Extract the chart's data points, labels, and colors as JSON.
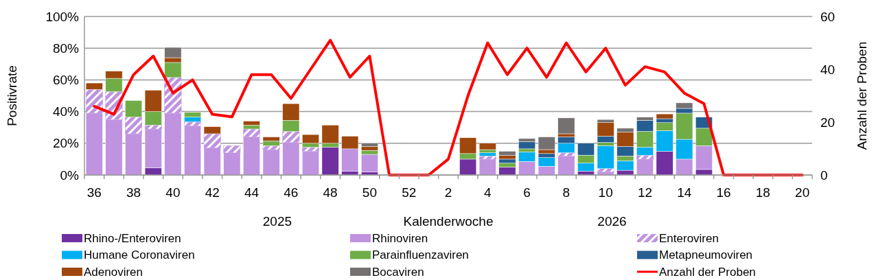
{
  "chart_data": {
    "type": "bar",
    "stacked": true,
    "xlabel": "Kalenderwoche",
    "ylabel": "Positivrate",
    "y2label": "Anzahl der Proben",
    "categories": [
      "36",
      null,
      "38",
      null,
      "40",
      null,
      "42",
      null,
      "44",
      null,
      "46",
      null,
      "48",
      null,
      "50",
      null,
      "52",
      null,
      "2",
      null,
      "4",
      null,
      "6",
      null,
      "8",
      null,
      "10",
      null,
      "12",
      null,
      "14",
      null,
      "16",
      null,
      "18",
      null,
      "20"
    ],
    "series": [
      {
        "name": "Rhino-/Enteroviren",
        "color": "#7030a0",
        "values": [
          null,
          null,
          null,
          4.5,
          null,
          null,
          null,
          null,
          null,
          null,
          null,
          null,
          17.5,
          2.5,
          2,
          null,
          null,
          null,
          null,
          10,
          null,
          5,
          null,
          null,
          null,
          2.5,
          null,
          3,
          null,
          15,
          null,
          3.5,
          null,
          null,
          null,
          null,
          null
        ]
      },
      {
        "name": "Rhinoviren",
        "color": "#bf93e0",
        "values": [
          39,
          35,
          26,
          24.5,
          39,
          31,
          17,
          14,
          24,
          16,
          20.5,
          15,
          null,
          14,
          11,
          null,
          null,
          null,
          null,
          null,
          10,
          null,
          8.5,
          5.5,
          12,
          null,
          2,
          null,
          10,
          null,
          10,
          15,
          null,
          null,
          null,
          null,
          null
        ]
      },
      {
        "name": "Enteroviren",
        "color": "#bf93e0",
        "values": [
          15,
          17.5,
          10.5,
          2.5,
          22.5,
          2.5,
          9,
          4.5,
          5,
          2.5,
          7,
          2.5,
          null,
          null,
          null,
          null,
          null,
          null,
          null,
          null,
          2,
          null,
          null,
          null,
          2,
          null,
          2,
          null,
          2.5,
          null,
          null,
          null,
          null,
          null,
          null,
          null,
          null
        ]
      },
      {
        "name": "Humane Coronaviren",
        "color": "#00b0f0",
        "values": [
          null,
          null,
          null,
          null,
          null,
          3,
          null,
          null,
          null,
          null,
          null,
          null,
          null,
          null,
          null,
          null,
          null,
          null,
          null,
          null,
          2,
          null,
          6,
          5.5,
          6,
          5,
          14.5,
          6,
          5,
          13,
          12.5,
          null,
          null,
          null,
          null,
          null,
          null
        ]
      },
      {
        "name": "Parainfluenzaviren",
        "color": "#70ad47",
        "values": [
          null,
          8.5,
          10.5,
          8.5,
          9.5,
          3,
          null,
          null,
          2.5,
          3,
          7,
          2.5,
          2.5,
          null,
          2.5,
          null,
          null,
          null,
          null,
          3.5,
          2,
          2.5,
          2,
          null,
          null,
          5,
          2,
          3,
          10,
          5,
          16.5,
          11,
          null,
          null,
          null,
          null,
          null
        ]
      },
      {
        "name": "Metapneumoviren",
        "color": "#255e91",
        "values": [
          null,
          null,
          null,
          null,
          null,
          null,
          null,
          null,
          null,
          null,
          null,
          null,
          null,
          null,
          null,
          null,
          null,
          null,
          null,
          null,
          null,
          2.5,
          4.5,
          2.5,
          4,
          7.5,
          4,
          6,
          7,
          2.5,
          3,
          7,
          null,
          null,
          null,
          null,
          null
        ]
      },
      {
        "name": "Adenoviren",
        "color": "#9e480e",
        "values": [
          4,
          4.5,
          null,
          13.5,
          3,
          null,
          4.5,
          null,
          2.5,
          2.5,
          10.5,
          5.5,
          11.5,
          8,
          2.5,
          null,
          null,
          null,
          null,
          10,
          4,
          2.5,
          null,
          2.5,
          2,
          null,
          8.5,
          9,
          null,
          3,
          null,
          null,
          null,
          null,
          null,
          null,
          null
        ]
      },
      {
        "name": "Bocaviren",
        "color": "#767171",
        "values": [
          null,
          null,
          null,
          null,
          6.5,
          null,
          null,
          null,
          null,
          null,
          null,
          null,
          null,
          null,
          2,
          null,
          null,
          null,
          null,
          null,
          null,
          2.5,
          2,
          8,
          10,
          null,
          2,
          2.5,
          2,
          null,
          3.5,
          null,
          null,
          null,
          null,
          null,
          null
        ]
      },
      {
        "name": "Anzahl der Proben",
        "type": "line",
        "axis": "y2",
        "color": "#ff0000",
        "values": [
          26,
          23,
          38,
          45,
          31,
          36,
          23,
          22,
          38,
          38,
          29,
          40,
          51,
          37,
          45,
          0,
          0,
          0,
          6,
          30,
          50,
          38,
          48,
          37,
          50,
          39,
          48,
          34,
          41,
          39,
          31,
          27,
          0,
          0,
          0,
          0,
          0
        ]
      }
    ],
    "ylim": [
      0,
      100
    ],
    "yticks": [
      {
        "value": 0,
        "label": "0%"
      },
      {
        "value": 20,
        "label": "20%"
      },
      {
        "value": 40,
        "label": "40%"
      },
      {
        "value": 60,
        "label": "60%"
      },
      {
        "value": 80,
        "label": "80%"
      },
      {
        "value": 100,
        "label": "100%"
      }
    ],
    "y2lim": [
      0,
      60
    ],
    "y2ticks": [
      0,
      20,
      40,
      60
    ],
    "grid": "y",
    "legend": "bottom",
    "annotations": [
      "2025",
      "2026"
    ]
  }
}
